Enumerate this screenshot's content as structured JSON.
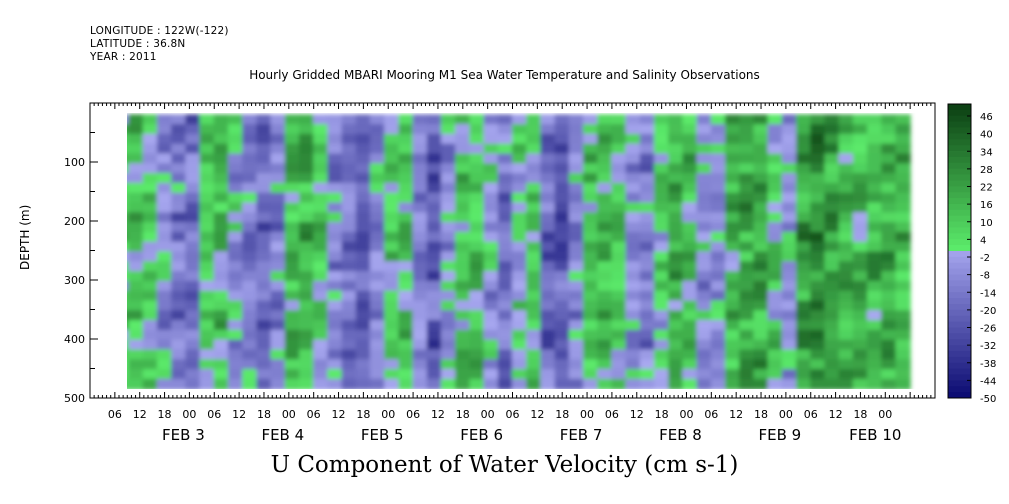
{
  "header": {
    "longitude": "LONGITUDE : 122W(-122)",
    "latitude": "LATITUDE : 36.8N",
    "year": "YEAR : 2011"
  },
  "chart_data": {
    "type": "heatmap",
    "title": "Hourly Gridded MBARI Mooring M1 Sea Water Temperature and Salinity Observations",
    "subtitle": "U Component of Water Velocity (cm s-1)",
    "ylabel": "DEPTH (m)",
    "xlabel": "",
    "x_start": "2011-02-02 00:00",
    "x_end": "2011-02-10 12:00",
    "data_start": "2011-02-02 06:00",
    "data_end": "2011-02-10 06:00",
    "ylim": [
      500,
      0
    ],
    "data_depth_range": [
      20,
      485
    ],
    "y_ticks": [
      100,
      200,
      300,
      400,
      500
    ],
    "x_hour_labels": [
      "06",
      "12",
      "18",
      "00",
      "06",
      "12",
      "18",
      "00",
      "06",
      "12",
      "18",
      "00",
      "06",
      "12",
      "18",
      "00",
      "06",
      "12",
      "18",
      "00",
      "06",
      "12",
      "18",
      "00",
      "06",
      "12",
      "18",
      "00",
      "06",
      "12",
      "18",
      "00"
    ],
    "x_date_labels": [
      "FEB  3",
      "FEB  4",
      "FEB  5",
      "FEB  6",
      "FEB  7",
      "FEB  8",
      "FEB  9",
      "FEB 10"
    ],
    "colorbar": {
      "labels": [
        "46",
        "40",
        "34",
        "28",
        "22",
        "16",
        "10",
        "4",
        "-2",
        "-8",
        "-14",
        "-20",
        "-26",
        "-32",
        "-38",
        "-44",
        "-50"
      ],
      "min": -50,
      "max": 50,
      "high_color": "#0b3d12",
      "mid_high_color": "#5bea6a",
      "mid_low_color": "#a8a8f0",
      "low_color": "#0a0a70"
    },
    "column_mean_velocity": [
      6,
      10,
      4,
      -6,
      -14,
      -18,
      8,
      12,
      -4,
      -16,
      -20,
      -10,
      14,
      16,
      6,
      -8,
      -18,
      -24,
      -6,
      4,
      8,
      -10,
      -22,
      -6,
      10,
      12,
      -4,
      -14,
      2,
      8,
      -18,
      -24,
      -8,
      10,
      14,
      6,
      -6,
      -12,
      4,
      16,
      12,
      -6,
      -10,
      16,
      20,
      18,
      6,
      -4,
      22,
      26,
      24,
      18,
      14,
      16,
      18,
      14
    ]
  }
}
